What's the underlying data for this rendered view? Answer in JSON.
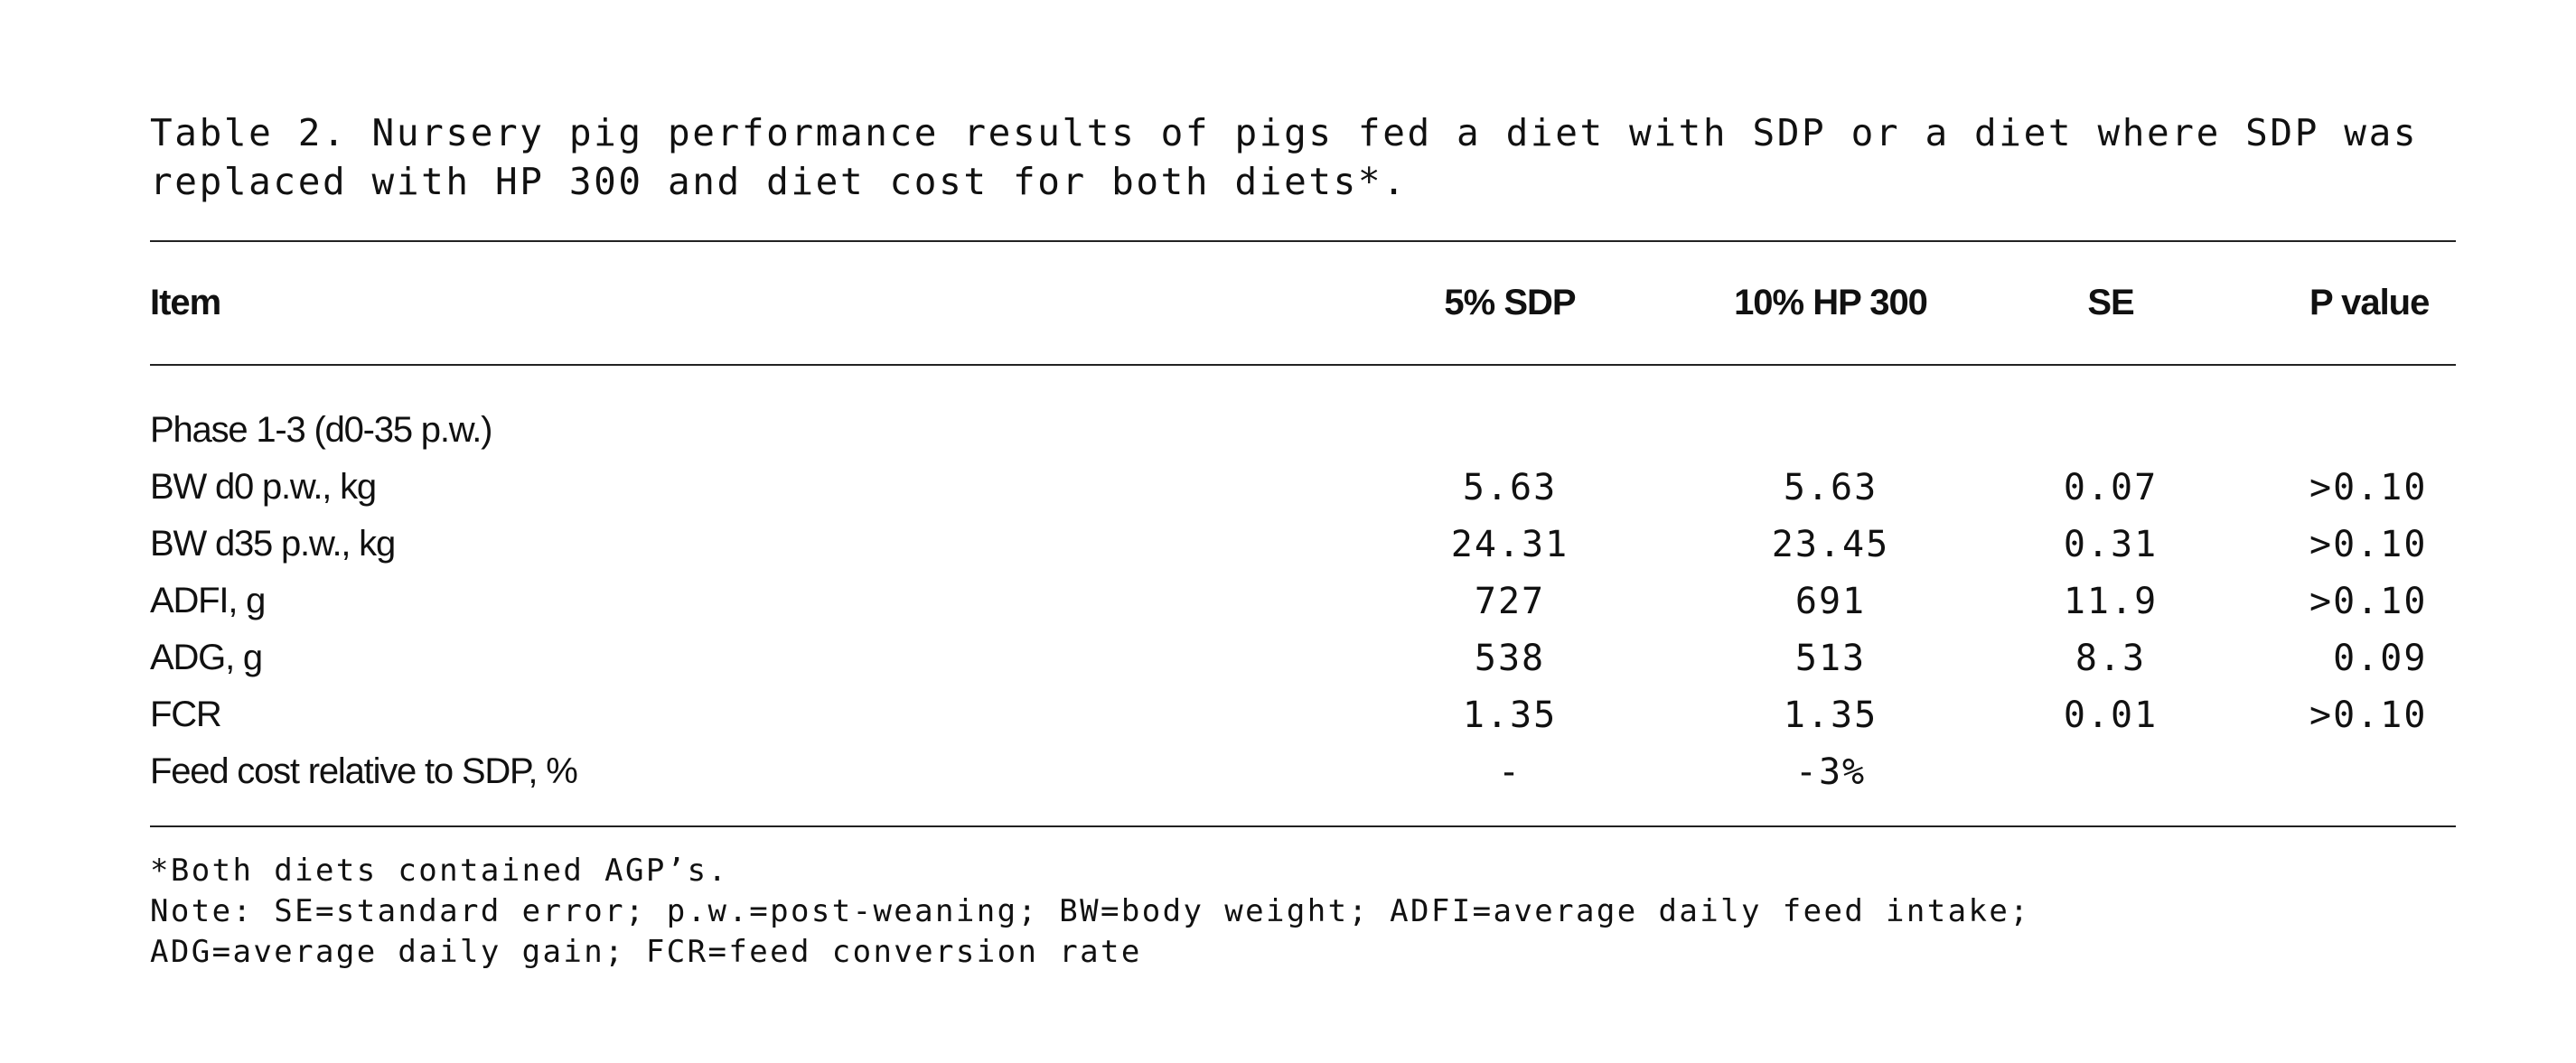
{
  "caption": "Table 2. Nursery pig performance results of pigs fed a diet with SDP or a diet where SDP was replaced with HP 300 and diet cost for both diets*.",
  "table": {
    "headers": [
      "Item",
      "5% SDP",
      "10% HP 300",
      "SE",
      "P value"
    ],
    "section_label": "Phase 1-3 (d0-35 p.w.)",
    "rows": [
      {
        "item": "BW d0 p.w., kg",
        "sdp": "5.63",
        "hp": "5.63",
        "se": "0.07",
        "p": ">0.10"
      },
      {
        "item": "BW d35 p.w., kg",
        "sdp": "24.31",
        "hp": "23.45",
        "se": "0.31",
        "p": ">0.10"
      },
      {
        "item": "ADFI, g",
        "sdp": "727",
        "hp": "691",
        "se": "11.9",
        "p": ">0.10"
      },
      {
        "item": "ADG, g",
        "sdp": "538",
        "hp": "513",
        "se": "8.3",
        "p": " 0.09"
      },
      {
        "item": "FCR",
        "sdp": "1.35",
        "hp": "1.35",
        "se": "0.01",
        "p": ">0.10"
      },
      {
        "item": "Feed cost relative to SDP, %",
        "sdp": "-",
        "hp": "-3%",
        "se": "",
        "p": ""
      }
    ]
  },
  "footnotes": [
    "*Both diets contained AGP’s.",
    "Note: SE=standard error; p.w.=post-weaning; BW=body weight; ADFI=average daily feed intake;",
    "ADG=average daily gain; FCR=feed conversion rate"
  ]
}
